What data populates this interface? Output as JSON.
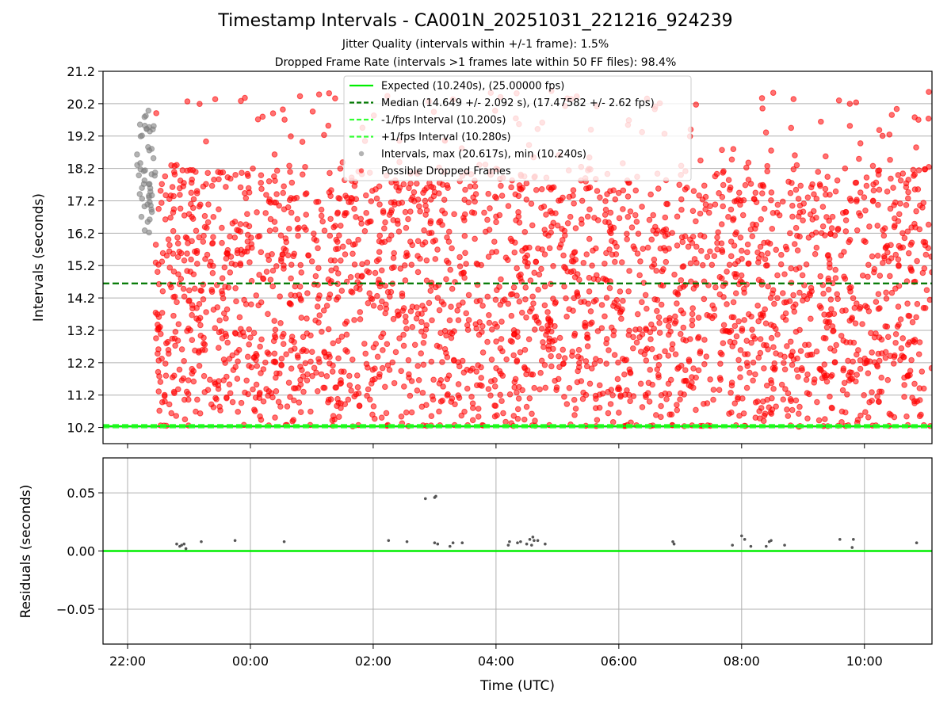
{
  "title": "Timestamp Intervals - CA001N_20251031_221216_924239",
  "subtitle1": "Jitter Quality (intervals within +/-1 frame): 1.5%",
  "subtitle2": "Dropped Frame Rate (intervals >1 frames late within 50 FF files): 98.4%",
  "colors": {
    "expected": "#00ee00",
    "median": "#007700",
    "fps_bounds": "#33ff33",
    "normal_points": "#808080",
    "dropped_points": "#ff0000",
    "residual_points": "#555555",
    "grid": "#b0b0b0"
  },
  "chart_data": [
    {
      "type": "scatter",
      "ylabel": "Intervals (seconds)",
      "xlabel": "",
      "x_unit": "hours since 22:00 UTC",
      "xlim": [
        -0.4,
        13.1
      ],
      "ylim": [
        9.7,
        21.2
      ],
      "yticks": [
        10.2,
        11.2,
        12.2,
        13.2,
        14.2,
        15.2,
        16.2,
        17.2,
        18.2,
        19.2,
        20.2,
        21.2
      ],
      "ytick_labels": [
        "10.2",
        "11.2",
        "12.2",
        "13.2",
        "14.2",
        "15.2",
        "16.2",
        "17.2",
        "18.2",
        "19.2",
        "20.2",
        "21.2"
      ],
      "grid": "horizontal",
      "reference_lines": [
        {
          "name": "Expected (10.240s), (25.00000 fps)",
          "y": 10.24,
          "style": "solid",
          "color": "#00ee00"
        },
        {
          "name": "Median (14.649 +/- 2.092 s), (17.47582 +/- 2.62 fps)",
          "y": 14.649,
          "style": "dashed",
          "color": "#007700"
        },
        {
          "name": "-1/fps Interval (10.200s)",
          "y": 10.2,
          "style": "dashed",
          "color": "#33ff33"
        },
        {
          "name": "+1/fps Interval (10.280s)",
          "y": 10.28,
          "style": "dashed",
          "color": "#33ff33"
        }
      ],
      "series": [
        {
          "name": "Intervals, max (20.617s), min (10.240s)",
          "color": "#808080",
          "x_range": [
            0.15,
            0.45
          ],
          "y_range": [
            15.0,
            20.0
          ],
          "count": 50
        },
        {
          "name": "Possible Dropped Frames",
          "color": "#ff0000",
          "x_range": [
            0.45,
            13.1
          ],
          "y_range": [
            10.24,
            20.617
          ],
          "count": 2600,
          "distribution": "mostly between 11.0 and 18.5 s, occasional values up to 20.6 s, clusters near 10.24 s"
        }
      ],
      "legend": {
        "placement": "top-center",
        "entries": [
          {
            "label": "Expected (10.240s), (25.00000 fps)",
            "kind": "line-solid",
            "color": "#00ee00"
          },
          {
            "label": "Median (14.649 +/- 2.092 s), (17.47582 +/- 2.62 fps)",
            "kind": "line-dashed",
            "color": "#007700"
          },
          {
            "label": "-1/fps Interval (10.200s)",
            "kind": "line-dashed",
            "color": "#33ff33"
          },
          {
            "label": "+1/fps Interval (10.280s)",
            "kind": "line-dashed",
            "color": "#33ff33"
          },
          {
            "label": "Intervals, max (20.617s), min (10.240s)",
            "kind": "marker",
            "color": "#808080"
          },
          {
            "label": "Possible Dropped Frames",
            "kind": "marker",
            "color": "#ff0000"
          }
        ]
      }
    },
    {
      "type": "scatter",
      "ylabel": "Residuals (seconds)",
      "xlabel": "Time (UTC)",
      "x_unit": "hours since 22:00 UTC",
      "xlim": [
        -0.4,
        13.1
      ],
      "ylim": [
        -0.08,
        0.08
      ],
      "xticks": [
        0,
        2,
        4,
        6,
        8,
        10,
        12
      ],
      "xtick_labels": [
        "22:00",
        "00:00",
        "02:00",
        "04:00",
        "06:00",
        "08:00",
        "10:00"
      ],
      "yticks": [
        -0.05,
        0.0,
        0.05
      ],
      "ytick_labels": [
        "−0.05",
        "0.00",
        "0.05"
      ],
      "grid": "both",
      "reference_lines": [
        {
          "name": "zero",
          "y": 0.0,
          "style": "solid",
          "color": "#00ee00"
        }
      ],
      "series": [
        {
          "name": "",
          "color": "#555555",
          "points": [
            [
              0.8,
              0.006
            ],
            [
              0.85,
              0.004
            ],
            [
              0.88,
              0.005
            ],
            [
              0.92,
              0.006
            ],
            [
              0.95,
              0.002
            ],
            [
              1.2,
              0.008
            ],
            [
              1.75,
              0.009
            ],
            [
              2.55,
              0.008
            ],
            [
              4.25,
              0.009
            ],
            [
              4.55,
              0.008
            ],
            [
              4.85,
              0.045
            ],
            [
              5.0,
              0.046
            ],
            [
              5.02,
              0.047
            ],
            [
              5.0,
              0.007
            ],
            [
              5.05,
              0.006
            ],
            [
              5.25,
              0.004
            ],
            [
              5.3,
              0.007
            ],
            [
              5.45,
              0.007
            ],
            [
              6.2,
              0.005
            ],
            [
              6.22,
              0.008
            ],
            [
              6.35,
              0.007
            ],
            [
              6.4,
              0.008
            ],
            [
              6.5,
              0.006
            ],
            [
              6.55,
              0.01
            ],
            [
              6.58,
              0.005
            ],
            [
              6.6,
              0.012
            ],
            [
              6.62,
              0.009
            ],
            [
              6.68,
              0.009
            ],
            [
              6.8,
              0.006
            ],
            [
              8.88,
              0.008
            ],
            [
              8.9,
              0.006
            ],
            [
              9.85,
              0.005
            ],
            [
              10.0,
              0.013
            ],
            [
              10.05,
              0.01
            ],
            [
              10.15,
              0.004
            ],
            [
              10.4,
              0.004
            ],
            [
              10.45,
              0.008
            ],
            [
              10.48,
              0.009
            ],
            [
              10.7,
              0.005
            ],
            [
              11.6,
              0.01
            ],
            [
              11.8,
              0.003
            ],
            [
              11.82,
              0.01
            ],
            [
              12.85,
              0.007
            ]
          ]
        }
      ]
    }
  ]
}
